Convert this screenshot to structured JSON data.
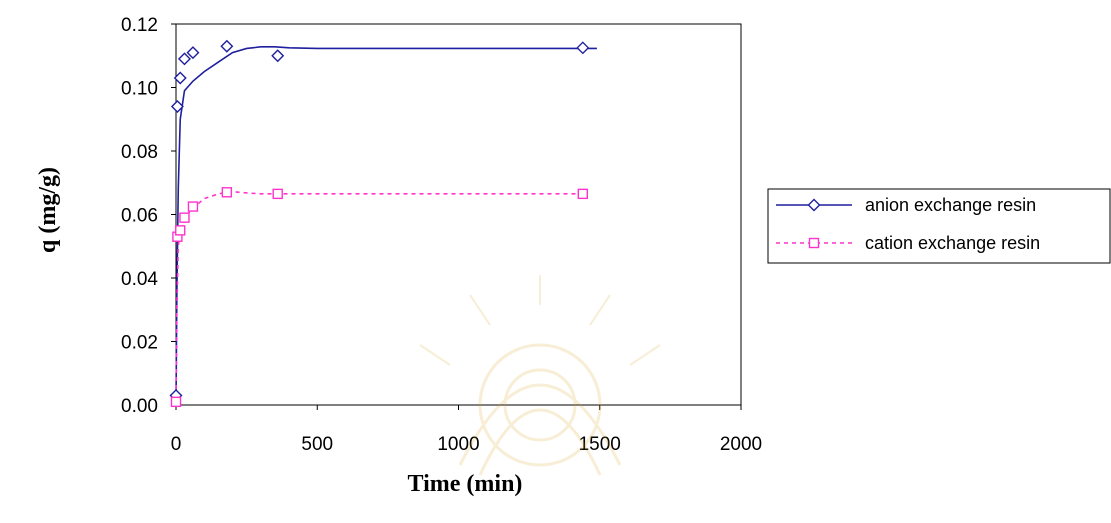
{
  "chart_data": {
    "type": "scatter",
    "title": "",
    "xlabel": "Time (min)",
    "ylabel": "q (mg/g)",
    "xlim": [
      0,
      2000
    ],
    "ylim": [
      0,
      0.12
    ],
    "xticks": [
      "0",
      "500",
      "1000",
      "1500",
      "2000"
    ],
    "yticks": [
      "0.00",
      "0.02",
      "0.04",
      "0.06",
      "0.08",
      "0.10",
      "0.12"
    ],
    "grid": false,
    "legend_position": "right",
    "series": [
      {
        "name": "anion exchange resin",
        "color": "#1f1f9f",
        "line_style": "solid",
        "marker": "diamond",
        "points": [
          [
            0,
            0.003
          ],
          [
            5,
            0.094
          ],
          [
            15,
            0.103
          ],
          [
            30,
            0.109
          ],
          [
            60,
            0.111
          ],
          [
            180,
            0.113
          ],
          [
            360,
            0.11
          ],
          [
            1440,
            0.1125
          ]
        ],
        "fit_curve": [
          [
            0,
            0.0
          ],
          [
            3,
            0.035
          ],
          [
            8,
            0.068
          ],
          [
            15,
            0.09
          ],
          [
            30,
            0.099
          ],
          [
            60,
            0.102
          ],
          [
            100,
            0.105
          ],
          [
            150,
            0.108
          ],
          [
            200,
            0.111
          ],
          [
            250,
            0.1123
          ],
          [
            300,
            0.1128
          ],
          [
            350,
            0.1128
          ],
          [
            400,
            0.1125
          ],
          [
            500,
            0.1123
          ],
          [
            800,
            0.1123
          ],
          [
            1200,
            0.1123
          ],
          [
            1490,
            0.1123
          ]
        ]
      },
      {
        "name": "cation exchange resin",
        "color": "#ff33cc",
        "line_style": "dashed",
        "marker": "square",
        "points": [
          [
            0,
            0.001
          ],
          [
            5,
            0.053
          ],
          [
            15,
            0.055
          ],
          [
            30,
            0.059
          ],
          [
            60,
            0.0625
          ],
          [
            180,
            0.067
          ],
          [
            360,
            0.0665
          ],
          [
            1440,
            0.0665
          ]
        ],
        "fit_curve": [
          [
            0,
            0.0
          ],
          [
            3,
            0.03
          ],
          [
            8,
            0.05
          ],
          [
            15,
            0.055
          ],
          [
            30,
            0.059
          ],
          [
            60,
            0.062
          ],
          [
            100,
            0.065
          ],
          [
            150,
            0.0665
          ],
          [
            200,
            0.0672
          ],
          [
            250,
            0.0668
          ],
          [
            300,
            0.0665
          ],
          [
            400,
            0.0665
          ],
          [
            800,
            0.0665
          ],
          [
            1200,
            0.0665
          ],
          [
            1440,
            0.0665
          ]
        ]
      }
    ]
  }
}
